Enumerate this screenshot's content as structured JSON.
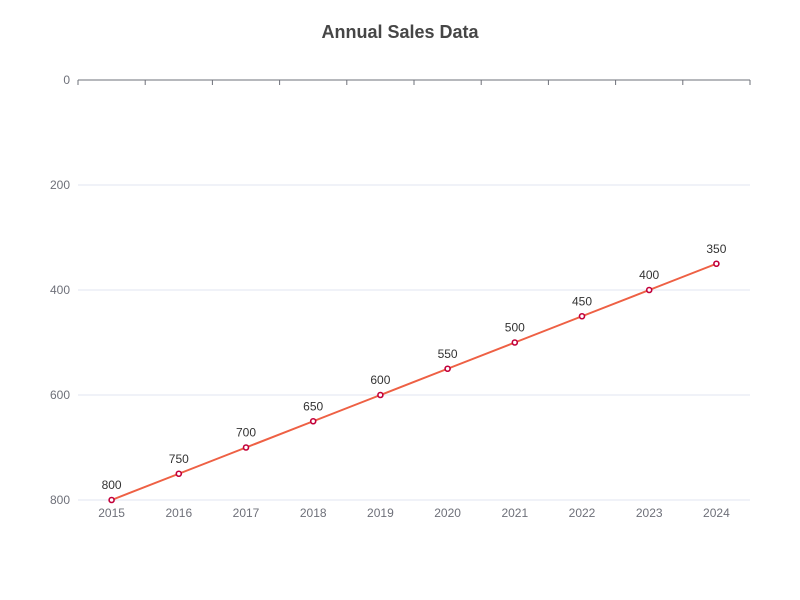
{
  "chart_data": {
    "type": "line",
    "title": "Annual Sales Data",
    "x": [
      "2015",
      "2016",
      "2017",
      "2018",
      "2019",
      "2020",
      "2021",
      "2022",
      "2023",
      "2024"
    ],
    "series": [
      {
        "values": [
          800,
          750,
          700,
          650,
          600,
          550,
          500,
          450,
          400,
          350
        ]
      }
    ],
    "xlabel": "",
    "ylabel": "",
    "ylim": [
      0,
      800
    ],
    "y_inverted": true,
    "y_ticks": [
      0,
      200,
      400,
      600,
      800
    ],
    "grid": true,
    "data_labels": true,
    "colors": {
      "line": "#ee6044",
      "marker_stroke": "#c2003a",
      "marker_fill": "#ffffff"
    }
  }
}
